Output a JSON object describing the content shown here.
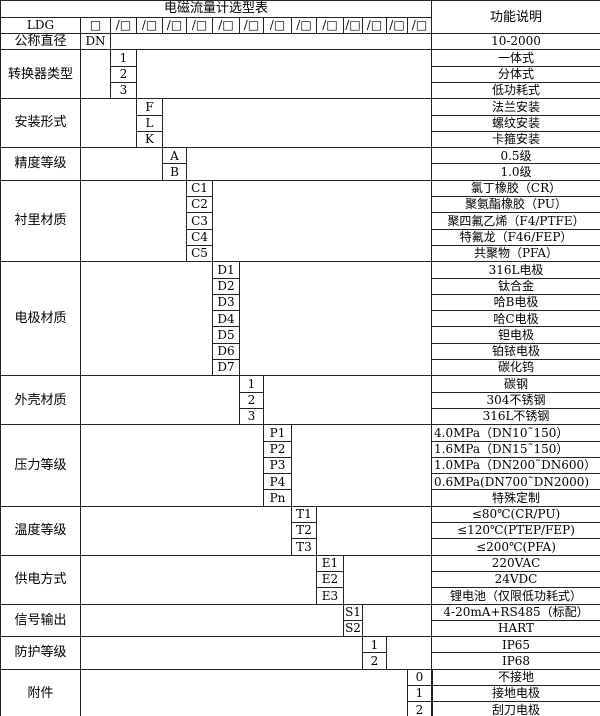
{
  "table": {
    "title": "电磁流量计选型表",
    "function_header": "功能说明",
    "model_prefix": "LDG",
    "model_first_box": "□",
    "model_boxes": [
      "/□",
      "/□",
      "/□",
      "/□",
      "/□",
      "/□",
      "/□",
      "/□",
      "/□",
      "/□",
      "/□",
      "/□",
      "/□"
    ],
    "diameter": {
      "label": "公称直径",
      "code": "DN",
      "desc": "10-2000"
    },
    "groups": [
      {
        "label": "转换器类型",
        "items": [
          {
            "code": "1",
            "desc": "一体式"
          },
          {
            "code": "2",
            "desc": "分体式"
          },
          {
            "code": "3",
            "desc": "低功耗式"
          }
        ]
      },
      {
        "label": "安装形式",
        "items": [
          {
            "code": "F",
            "desc": "法兰安装"
          },
          {
            "code": "L",
            "desc": "螺纹安装"
          },
          {
            "code": "K",
            "desc": "卡箍安装"
          }
        ]
      },
      {
        "label": "精度等级",
        "items": [
          {
            "code": "A",
            "desc": "0.5级"
          },
          {
            "code": "B",
            "desc": "1.0级"
          }
        ]
      },
      {
        "label": "衬里材质",
        "items": [
          {
            "code": "C1",
            "desc": "氯丁橡胶（CR）"
          },
          {
            "code": "C2",
            "desc": "聚氨酯橡胶（PU）"
          },
          {
            "code": "C3",
            "desc": "聚四氟乙烯（F4/PTFE）"
          },
          {
            "code": "C4",
            "desc": "特氟龙（F46/FEP）"
          },
          {
            "code": "C5",
            "desc": "共聚物（PFA）"
          }
        ]
      },
      {
        "label": "电极材质",
        "items": [
          {
            "code": "D1",
            "desc": "316L电极"
          },
          {
            "code": "D2",
            "desc": "钛合金"
          },
          {
            "code": "D3",
            "desc": "哈B电极"
          },
          {
            "code": "D4",
            "desc": "哈C电极"
          },
          {
            "code": "D5",
            "desc": "钽电极"
          },
          {
            "code": "D6",
            "desc": "铂铱电极"
          },
          {
            "code": "D7",
            "desc": "碳化钨"
          }
        ]
      },
      {
        "label": "外壳材质",
        "items": [
          {
            "code": "1",
            "desc": "碳钢"
          },
          {
            "code": "2",
            "desc": "304不锈钢"
          },
          {
            "code": "3",
            "desc": "316L不锈钢"
          }
        ]
      },
      {
        "label": "压力等级",
        "items": [
          {
            "code": "P1",
            "desc": "4.0MPa（DN10˜150）",
            "align": "left"
          },
          {
            "code": "P2",
            "desc": "1.6MPa（DN15˜150）",
            "align": "left"
          },
          {
            "code": "P3",
            "desc": "1.0MPa（DN200˜DN600）",
            "align": "left"
          },
          {
            "code": "P4",
            "desc": "0.6MPa(DN700˜DN2000)",
            "align": "left"
          },
          {
            "code": "Pn",
            "desc": "特殊定制"
          }
        ]
      },
      {
        "label": "温度等级",
        "items": [
          {
            "code": "T1",
            "desc": "≤80℃(CR/PU)"
          },
          {
            "code": "T2",
            "desc": "≤120℃(PTEP/FEP)"
          },
          {
            "code": "T3",
            "desc": "≤200℃(PFA)"
          }
        ]
      },
      {
        "label": "供电方式",
        "items": [
          {
            "code": "E1",
            "desc": "220VAC"
          },
          {
            "code": "E2",
            "desc": "24VDC"
          },
          {
            "code": "E3",
            "desc": "锂电池（仅限低功耗式）"
          }
        ]
      },
      {
        "label": "信号输出",
        "items": [
          {
            "code": "S1",
            "desc": "4-20mA+RS485（标配）"
          },
          {
            "code": "S2",
            "desc": "HART"
          }
        ]
      },
      {
        "label": "防护等级",
        "items": [
          {
            "code": "1",
            "desc": "IP65"
          },
          {
            "code": "2",
            "desc": "IP68"
          }
        ]
      },
      {
        "label": "附件",
        "items": [
          {
            "code": "0",
            "desc": "不接地"
          },
          {
            "code": "1",
            "desc": "接地电极"
          },
          {
            "code": "2",
            "desc": "刮刀电极"
          }
        ]
      }
    ]
  }
}
